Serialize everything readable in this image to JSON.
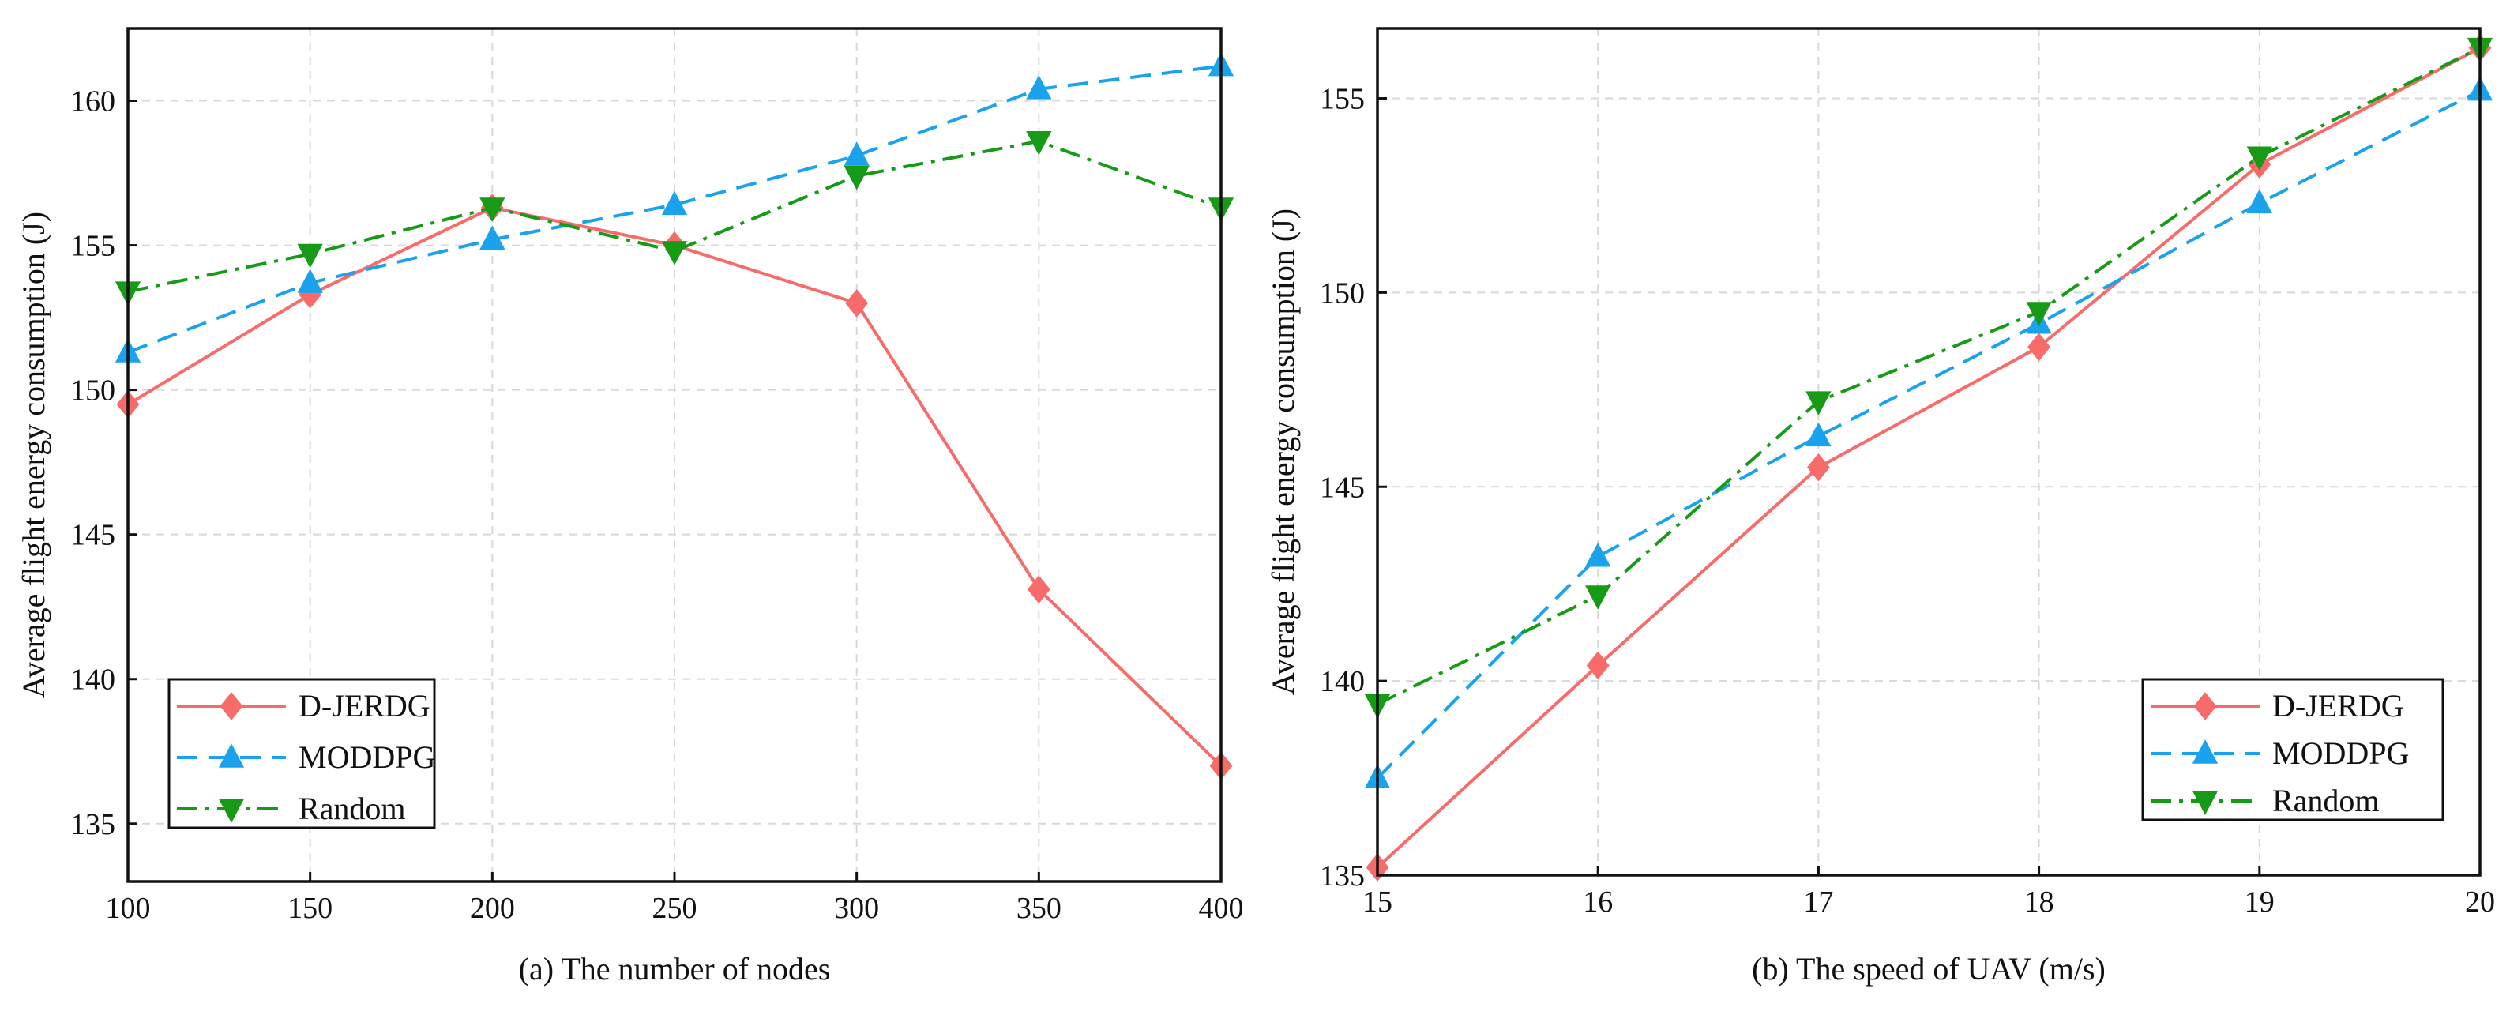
{
  "chart_data": [
    {
      "type": "line",
      "caption": "(a) The number of nodes",
      "xlabel": "",
      "ylabel": "Average flight energy consumption (J)",
      "x": [
        100,
        150,
        200,
        250,
        300,
        350,
        400
      ],
      "xlim": [
        100,
        400
      ],
      "ylim": [
        133,
        162.5
      ],
      "xticks": [
        100,
        150,
        200,
        250,
        300,
        350,
        400
      ],
      "yticks": [
        135,
        140,
        145,
        150,
        155,
        160
      ],
      "grid": true,
      "legend_position": "bottom-left",
      "series": [
        {
          "name": "D-JERDG",
          "color": "#f76b6b",
          "dash": "solid",
          "marker": "diamond",
          "values": [
            149.5,
            153.3,
            156.3,
            155.0,
            153.0,
            143.1,
            137.0
          ]
        },
        {
          "name": "MODDPG",
          "color": "#1aa3ec",
          "dash": "dash",
          "marker": "triangle-up",
          "values": [
            151.3,
            153.7,
            155.2,
            156.4,
            158.1,
            160.4,
            161.2
          ]
        },
        {
          "name": "Random",
          "color": "#179b17",
          "dash": "dashdot",
          "marker": "triangle-down",
          "values": [
            153.4,
            154.7,
            156.3,
            154.8,
            157.4,
            158.6,
            156.3
          ]
        }
      ]
    },
    {
      "type": "line",
      "caption": "(b) The speed of UAV (m/s)",
      "xlabel": "",
      "ylabel": "Average flight energy consumption (J)",
      "x": [
        15,
        16,
        17,
        18,
        19,
        20
      ],
      "xlim": [
        15,
        20
      ],
      "ylim": [
        135,
        156.8
      ],
      "xticks": [
        15,
        16,
        17,
        18,
        19,
        20
      ],
      "yticks": [
        135,
        140,
        145,
        150,
        155
      ],
      "grid": true,
      "legend_position": "bottom-right",
      "series": [
        {
          "name": "D-JERDG",
          "color": "#f76b6b",
          "dash": "solid",
          "marker": "diamond",
          "values": [
            135.2,
            140.4,
            145.5,
            148.6,
            153.3,
            156.3
          ]
        },
        {
          "name": "MODDPG",
          "color": "#1aa3ec",
          "dash": "dash",
          "marker": "triangle-up",
          "values": [
            137.5,
            143.2,
            146.3,
            149.2,
            152.3,
            155.2
          ]
        },
        {
          "name": "Random",
          "color": "#179b17",
          "dash": "dashdot",
          "marker": "triangle-down",
          "values": [
            139.4,
            142.2,
            147.2,
            149.5,
            153.5,
            156.3
          ]
        }
      ]
    }
  ]
}
